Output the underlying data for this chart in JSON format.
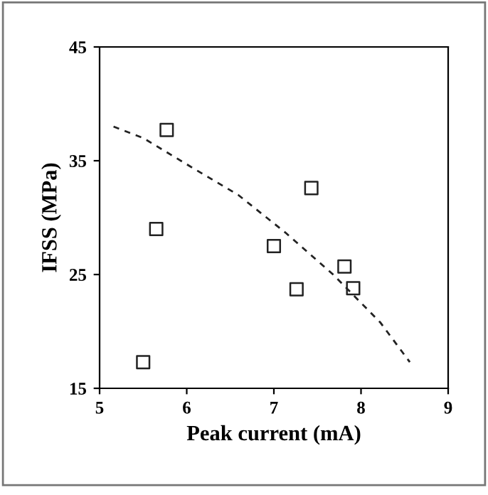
{
  "chart_data": {
    "type": "scatter",
    "xlabel": "Peak current (mA)",
    "ylabel": "IFSS (MPa)",
    "xlim": [
      5,
      9
    ],
    "xticks": [
      5,
      6,
      7,
      8,
      9
    ],
    "ylim": [
      15,
      45
    ],
    "yticks": [
      15,
      25,
      35,
      45
    ],
    "grid": false,
    "legend": false,
    "series": [
      {
        "color": "#222222",
        "marker": "square",
        "x": [
          5.5,
          5.65,
          5.77,
          7.0,
          7.26,
          7.43,
          7.81,
          7.91
        ],
        "values": [
          17.3,
          29.0,
          37.7,
          27.5,
          23.7,
          32.6,
          25.7,
          23.8
        ]
      },
      {
        "type": "line",
        "color": "#222222",
        "line_style": "dashed",
        "marker": "none",
        "x": [
          5.16,
          5.5,
          6.04,
          6.59,
          7.13,
          7.68,
          8.22,
          8.56
        ],
        "values": [
          38.0,
          37.0,
          34.5,
          32.0,
          28.7,
          25.0,
          20.8,
          17.3
        ]
      }
    ]
  }
}
